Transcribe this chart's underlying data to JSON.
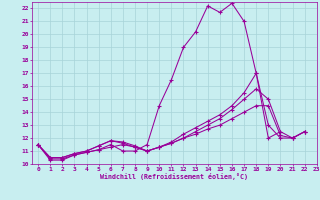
{
  "xlabel": "Windchill (Refroidissement éolien,°C)",
  "xlim": [
    -0.5,
    23
  ],
  "ylim": [
    10,
    22.5
  ],
  "xticks": [
    0,
    1,
    2,
    3,
    4,
    5,
    6,
    7,
    8,
    9,
    10,
    11,
    12,
    13,
    14,
    15,
    16,
    17,
    18,
    19,
    20,
    21,
    22,
    23
  ],
  "yticks": [
    10,
    11,
    12,
    13,
    14,
    15,
    16,
    17,
    18,
    19,
    20,
    21,
    22
  ],
  "bg_color": "#c8eef0",
  "grid_color": "#a8d4d8",
  "line_color": "#990099",
  "line1_x": [
    0,
    1,
    2,
    3,
    4,
    5,
    6,
    7,
    8,
    9,
    10,
    11,
    12,
    13,
    14,
    15,
    16,
    17,
    18,
    19,
    20
  ],
  "line1_y": [
    11.5,
    10.3,
    10.3,
    10.7,
    10.9,
    11.1,
    11.5,
    11.0,
    11.0,
    11.5,
    14.5,
    16.5,
    19.0,
    20.2,
    22.2,
    21.7,
    22.4,
    21.0,
    17.0,
    12.0,
    12.5
  ],
  "line2_x": [
    0,
    1,
    2,
    3,
    4,
    5,
    6,
    7,
    8,
    9,
    10,
    11,
    12,
    13,
    14,
    15,
    16,
    17,
    18,
    19,
    20,
    21,
    22
  ],
  "line2_y": [
    11.5,
    10.4,
    10.4,
    10.7,
    10.9,
    11.1,
    11.3,
    11.5,
    11.3,
    11.0,
    11.3,
    11.7,
    12.3,
    12.8,
    13.3,
    13.8,
    14.5,
    15.5,
    17.0,
    13.0,
    12.0,
    12.0,
    12.5
  ],
  "line3_x": [
    0,
    1,
    2,
    3,
    4,
    5,
    6,
    7,
    8,
    9,
    10,
    11,
    12,
    13,
    14,
    15,
    16,
    17,
    18,
    19,
    20,
    21,
    22
  ],
  "line3_y": [
    11.5,
    10.5,
    10.5,
    10.8,
    11.0,
    11.4,
    11.8,
    11.7,
    11.4,
    11.0,
    11.3,
    11.6,
    12.0,
    12.5,
    13.0,
    13.5,
    14.2,
    15.0,
    15.8,
    15.0,
    12.5,
    12.0,
    12.5
  ],
  "line4_x": [
    0,
    1,
    2,
    3,
    4,
    5,
    6,
    7,
    8,
    9,
    10,
    11,
    12,
    13,
    14,
    15,
    16,
    17,
    18,
    19,
    20,
    21,
    22
  ],
  "line4_y": [
    11.5,
    10.5,
    10.5,
    10.8,
    11.0,
    11.4,
    11.8,
    11.6,
    11.3,
    11.0,
    11.3,
    11.6,
    12.0,
    12.3,
    12.7,
    13.0,
    13.5,
    14.0,
    14.5,
    14.5,
    12.2,
    12.0,
    12.5
  ]
}
